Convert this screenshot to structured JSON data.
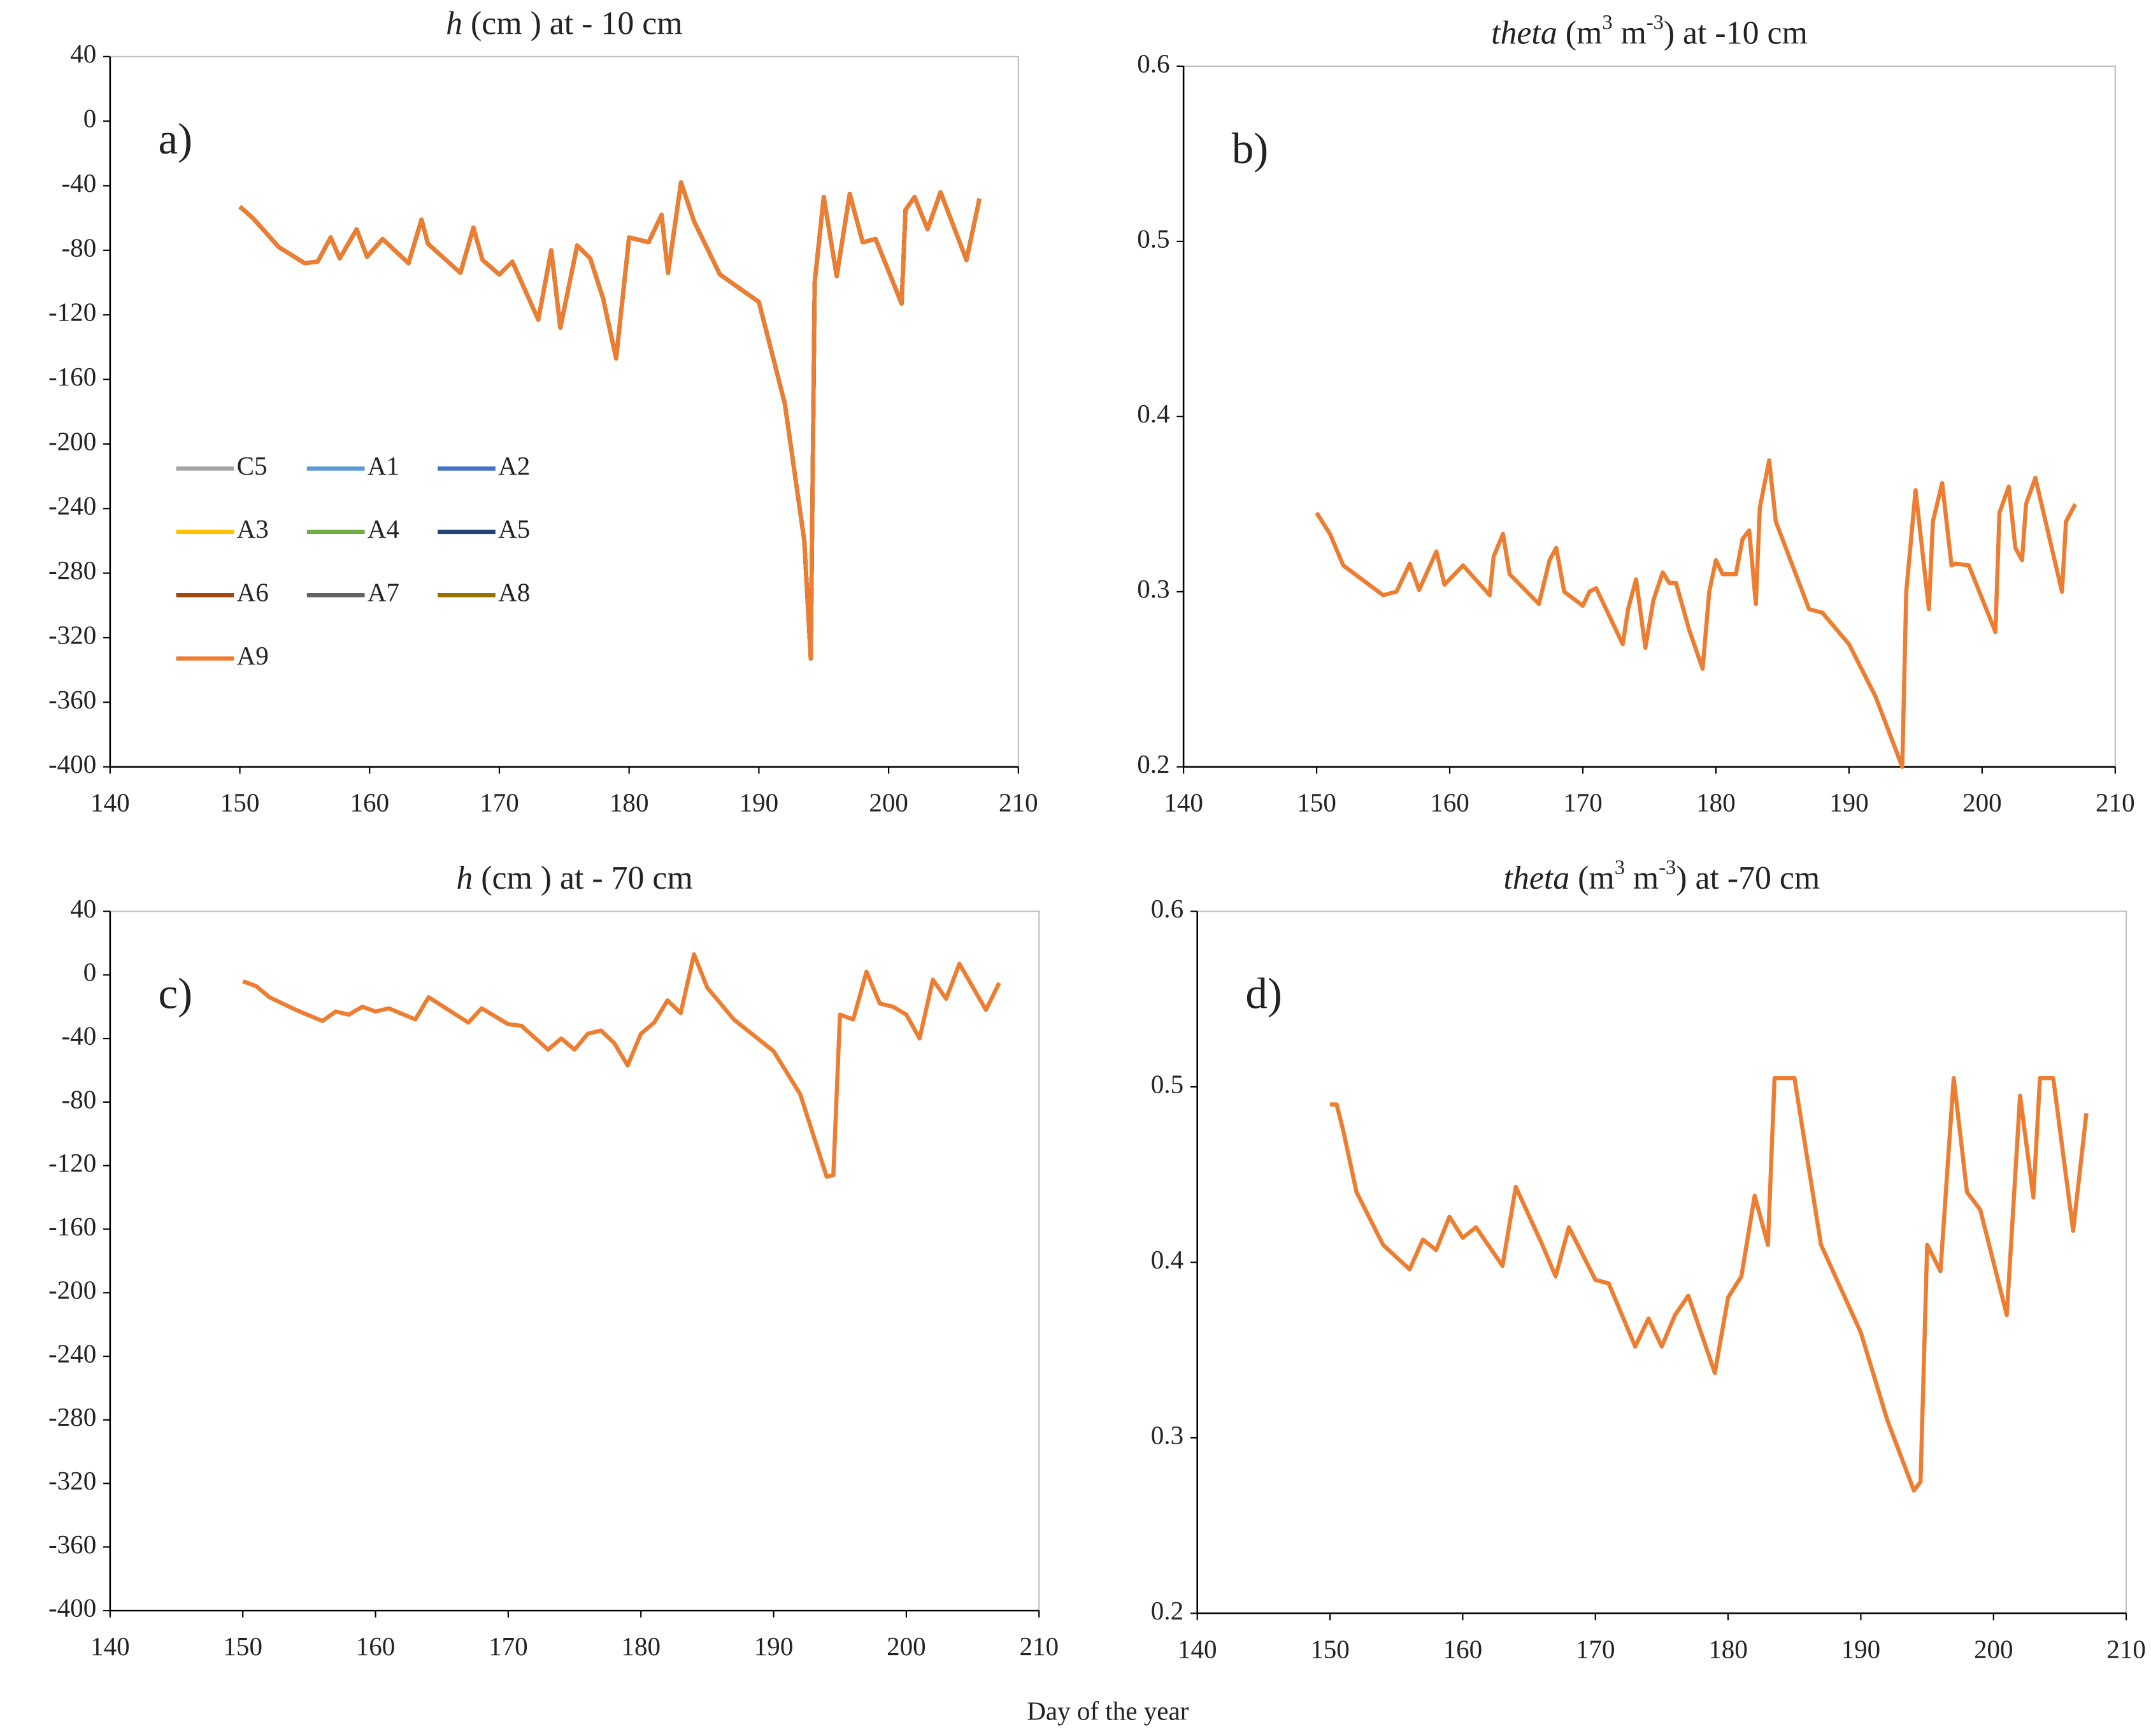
{
  "xlabel": "Day of the year",
  "chart_data": [
    {
      "type": "line",
      "label": "a)",
      "title": [
        {
          "text": "h",
          "italic": true
        },
        {
          "text": " (cm ) at - 10 cm"
        }
      ],
      "xlim": [
        140,
        210
      ],
      "xticks": [
        140,
        150,
        160,
        170,
        180,
        190,
        200,
        210
      ],
      "ylim": [
        -400,
        40
      ],
      "yticks": [
        -400,
        -360,
        -320,
        -280,
        -240,
        -200,
        -160,
        -120,
        -80,
        -40,
        0,
        40
      ],
      "legend": "center-left",
      "x": [
        150,
        151,
        153,
        155,
        156,
        157,
        157.7,
        159,
        159.8,
        161,
        163,
        164,
        164.5,
        167,
        168,
        168.7,
        170,
        171,
        173,
        174,
        174.7,
        176,
        177,
        178,
        179,
        180,
        181.5,
        182.5,
        183,
        184,
        185,
        187,
        190,
        192,
        193.5,
        194,
        194.3,
        195,
        196,
        197,
        198,
        199,
        201,
        201.3,
        202,
        203,
        204,
        206,
        207
      ],
      "series": [
        {
          "name": "C5",
          "color": "#a5a5a5",
          "values": [
            -53,
            -60,
            -78,
            -88,
            -87,
            -72,
            -85,
            -67,
            -84,
            -73,
            -88,
            -61,
            -76,
            -94,
            -66,
            -86,
            -95,
            -87,
            -123,
            -80,
            -128,
            -77,
            -85,
            -110,
            -147,
            -72,
            -75,
            -58,
            -94,
            -38,
            -62,
            -95,
            -112,
            -175,
            -260,
            -333,
            -100,
            -47,
            -96,
            -45,
            -75,
            -73,
            -113,
            -55,
            -47,
            -67,
            -44,
            -86,
            -48
          ]
        },
        {
          "name": "A1",
          "color": "#5b9bd5",
          "values": [
            -53,
            -60,
            -78,
            -88,
            -87,
            -72,
            -85,
            -67,
            -84,
            -73,
            -88,
            -61,
            -76,
            -94,
            -66,
            -86,
            -95,
            -87,
            -123,
            -80,
            -128,
            -77,
            -85,
            -110,
            -147,
            -72,
            -75,
            -58,
            -94,
            -38,
            -62,
            -95,
            -112,
            -175,
            -260,
            -333,
            -100,
            -47,
            -96,
            -45,
            -75,
            -73,
            -113,
            -55,
            -47,
            -67,
            -44,
            -86,
            -48
          ]
        },
        {
          "name": "A2",
          "color": "#4472c4",
          "values": [
            -53,
            -60,
            -78,
            -88,
            -87,
            -72,
            -85,
            -67,
            -84,
            -73,
            -88,
            -61,
            -76,
            -94,
            -66,
            -86,
            -95,
            -87,
            -123,
            -80,
            -128,
            -77,
            -85,
            -110,
            -147,
            -72,
            -75,
            -58,
            -94,
            -38,
            -62,
            -95,
            -112,
            -175,
            -260,
            -333,
            -100,
            -47,
            -96,
            -45,
            -75,
            -73,
            -113,
            -55,
            -47,
            -67,
            -44,
            -86,
            -48
          ]
        },
        {
          "name": "A3",
          "color": "#ffc000",
          "values": [
            -53,
            -60,
            -78,
            -88,
            -87,
            -72,
            -85,
            -67,
            -84,
            -73,
            -88,
            -61,
            -76,
            -94,
            -66,
            -86,
            -95,
            -87,
            -123,
            -80,
            -128,
            -77,
            -85,
            -110,
            -147,
            -72,
            -75,
            -58,
            -94,
            -38,
            -62,
            -95,
            -112,
            -175,
            -260,
            -333,
            -100,
            -47,
            -96,
            -45,
            -75,
            -73,
            -113,
            -55,
            -47,
            -67,
            -44,
            -86,
            -48
          ]
        },
        {
          "name": "A4",
          "color": "#70ad47",
          "values": [
            -53,
            -60,
            -78,
            -88,
            -87,
            -72,
            -85,
            -67,
            -84,
            -73,
            -88,
            -61,
            -76,
            -94,
            -66,
            -86,
            -95,
            -87,
            -123,
            -80,
            -128,
            -77,
            -85,
            -110,
            -147,
            -72,
            -75,
            -58,
            -94,
            -38,
            -62,
            -95,
            -112,
            -175,
            -260,
            -333,
            -100,
            -47,
            -96,
            -45,
            -75,
            -73,
            -113,
            -55,
            -47,
            -67,
            -44,
            -86,
            -48
          ]
        },
        {
          "name": "A5",
          "color": "#264478",
          "values": [
            -53,
            -60,
            -78,
            -88,
            -87,
            -72,
            -85,
            -67,
            -84,
            -73,
            -88,
            -61,
            -76,
            -94,
            -66,
            -86,
            -95,
            -87,
            -123,
            -80,
            -128,
            -77,
            -85,
            -110,
            -147,
            -72,
            -75,
            -58,
            -94,
            -38,
            -62,
            -95,
            -112,
            -175,
            -260,
            -333,
            -100,
            -47,
            -96,
            -45,
            -75,
            -73,
            -113,
            -55,
            -47,
            -67,
            -44,
            -86,
            -48
          ]
        },
        {
          "name": "A6",
          "color": "#9e480e",
          "values": [
            -53,
            -60,
            -78,
            -88,
            -87,
            -72,
            -85,
            -67,
            -84,
            -73,
            -88,
            -61,
            -76,
            -94,
            -66,
            -86,
            -95,
            -87,
            -123,
            -80,
            -128,
            -77,
            -85,
            -110,
            -147,
            -72,
            -75,
            -58,
            -94,
            -38,
            -62,
            -95,
            -112,
            -175,
            -260,
            -333,
            -100,
            -47,
            -96,
            -45,
            -75,
            -73,
            -113,
            -55,
            -47,
            -67,
            -44,
            -86,
            -48
          ]
        },
        {
          "name": "A7",
          "color": "#636363",
          "values": [
            -53,
            -60,
            -78,
            -88,
            -87,
            -72,
            -85,
            -67,
            -84,
            -73,
            -88,
            -61,
            -76,
            -94,
            -66,
            -86,
            -95,
            -87,
            -123,
            -80,
            -128,
            -77,
            -85,
            -110,
            -147,
            -72,
            -75,
            -58,
            -94,
            -38,
            -62,
            -95,
            -112,
            -175,
            -260,
            -333,
            -100,
            -47,
            -96,
            -45,
            -75,
            -73,
            -113,
            -55,
            -47,
            -67,
            -44,
            -86,
            -48
          ]
        },
        {
          "name": "A8",
          "color": "#997300",
          "values": [
            -53,
            -60,
            -78,
            -88,
            -87,
            -72,
            -85,
            -67,
            -84,
            -73,
            -88,
            -61,
            -76,
            -94,
            -66,
            -86,
            -95,
            -87,
            -123,
            -80,
            -128,
            -77,
            -85,
            -110,
            -147,
            -72,
            -75,
            -58,
            -94,
            -38,
            -62,
            -95,
            -112,
            -175,
            -260,
            -333,
            -100,
            -47,
            -96,
            -45,
            -75,
            -73,
            -113,
            -55,
            -47,
            -67,
            -44,
            -86,
            -48
          ]
        },
        {
          "name": "A9",
          "color": "#ed7d31",
          "values": [
            -53,
            -60,
            -78,
            -88,
            -87,
            -72,
            -85,
            -67,
            -84,
            -73,
            -88,
            -61,
            -76,
            -94,
            -66,
            -86,
            -95,
            -87,
            -123,
            -80,
            -128,
            -77,
            -85,
            -110,
            -147,
            -72,
            -75,
            -58,
            -94,
            -38,
            -62,
            -95,
            -112,
            -175,
            -260,
            -333,
            -100,
            -47,
            -96,
            -45,
            -75,
            -73,
            -113,
            -55,
            -47,
            -67,
            -44,
            -86,
            -48
          ]
        }
      ]
    },
    {
      "type": "line",
      "label": "b)",
      "title": [
        {
          "text": "theta",
          "italic": true
        },
        {
          "text": " (m"
        },
        {
          "text": "3",
          "sup": true
        },
        {
          "text": " m"
        },
        {
          "text": "-3",
          "sup": true
        },
        {
          "text": ")  at -10 cm"
        }
      ],
      "xlim": [
        140,
        210
      ],
      "xticks": [
        140,
        150,
        160,
        170,
        180,
        190,
        200,
        210
      ],
      "ylim": [
        0.2,
        0.6
      ],
      "yticks": [
        0.2,
        0.3,
        0.4,
        0.5,
        0.6
      ],
      "x": [
        150,
        151,
        152,
        155,
        156,
        157,
        157.7,
        159,
        159.6,
        161,
        163,
        163.3,
        164,
        164.5,
        166.7,
        167.5,
        168,
        168.6,
        170,
        170.5,
        171,
        173,
        173.4,
        174,
        174.7,
        175.3,
        176,
        176.5,
        177,
        178,
        179,
        179.5,
        180,
        180.5,
        181.5,
        182,
        182.5,
        183,
        183.3,
        184,
        184.5,
        187,
        188,
        190,
        192,
        194,
        194.3,
        195,
        196,
        196.3,
        197,
        197.7,
        198,
        199,
        201,
        201.3,
        202,
        202.5,
        203,
        203.3,
        204,
        206,
        206.3,
        207
      ],
      "series": [
        {
          "color": "#ed7d31",
          "values": [
            0.345,
            0.333,
            0.315,
            0.298,
            0.3,
            0.316,
            0.301,
            0.323,
            0.304,
            0.315,
            0.298,
            0.32,
            0.333,
            0.31,
            0.293,
            0.318,
            0.325,
            0.3,
            0.292,
            0.3,
            0.302,
            0.27,
            0.29,
            0.307,
            0.268,
            0.295,
            0.311,
            0.305,
            0.305,
            0.278,
            0.256,
            0.3,
            0.318,
            0.31,
            0.31,
            0.33,
            0.335,
            0.293,
            0.348,
            0.375,
            0.34,
            0.29,
            0.288,
            0.27,
            0.24,
            0.2,
            0.3,
            0.358,
            0.29,
            0.34,
            0.362,
            0.315,
            0.316,
            0.315,
            0.277,
            0.345,
            0.36,
            0.325,
            0.318,
            0.35,
            0.365,
            0.3,
            0.34,
            0.35
          ]
        }
      ]
    },
    {
      "type": "line",
      "label": "c)",
      "title": [
        {
          "text": "h",
          "italic": true
        },
        {
          "text": " (cm ) at - 70 cm"
        }
      ],
      "xlim": [
        140,
        210
      ],
      "xticks": [
        140,
        150,
        160,
        170,
        180,
        190,
        200,
        210
      ],
      "ylim": [
        -400,
        40
      ],
      "yticks": [
        -400,
        -360,
        -320,
        -280,
        -240,
        -200,
        -160,
        -120,
        -80,
        -40,
        0,
        40
      ],
      "x": [
        150,
        151,
        152,
        154,
        156,
        157,
        158,
        159,
        160,
        161,
        163,
        164,
        167,
        168,
        170,
        171,
        173,
        174,
        175,
        176,
        177,
        178,
        179,
        180,
        181,
        182,
        183,
        184,
        185,
        187,
        190,
        192,
        194,
        194.5,
        195,
        196,
        197,
        198,
        199,
        200,
        201,
        202,
        203,
        204,
        206,
        207
      ],
      "series": [
        {
          "color": "#ed7d31",
          "values": [
            -4,
            -7,
            -14,
            -22,
            -29,
            -23,
            -25,
            -20,
            -23,
            -21,
            -28,
            -14,
            -30,
            -21,
            -31,
            -32,
            -47,
            -40,
            -47,
            -37,
            -35,
            -43,
            -57,
            -37,
            -30,
            -16,
            -24,
            13,
            -8,
            -28,
            -48,
            -75,
            -127,
            -126,
            -25,
            -28,
            2,
            -18,
            -20,
            -25,
            -40,
            -3,
            -15,
            7,
            -22,
            -5
          ]
        }
      ]
    },
    {
      "type": "line",
      "label": "d)",
      "title": [
        {
          "text": "theta",
          "italic": true
        },
        {
          "text": " (m"
        },
        {
          "text": "3",
          "sup": true
        },
        {
          "text": " m"
        },
        {
          "text": "-3",
          "sup": true
        },
        {
          "text": ")  at -70 cm"
        }
      ],
      "xlim": [
        140,
        210
      ],
      "xticks": [
        140,
        150,
        160,
        170,
        180,
        190,
        200,
        210
      ],
      "ylim": [
        0.2,
        0.6
      ],
      "yticks": [
        0.2,
        0.3,
        0.4,
        0.5,
        0.6
      ],
      "x": [
        150,
        150.5,
        151,
        152,
        154,
        156,
        157,
        158,
        159,
        160,
        161,
        163,
        164,
        166,
        167,
        168,
        170,
        171,
        173,
        174,
        175,
        176,
        177,
        179,
        180,
        181,
        182,
        183,
        183.5,
        185,
        187,
        190,
        192,
        194,
        194.5,
        195,
        196,
        197,
        198,
        199,
        200,
        201,
        202,
        203,
        203.5,
        204.5,
        206,
        207
      ],
      "series": [
        {
          "color": "#ed7d31",
          "values": [
            0.49,
            0.49,
            0.475,
            0.44,
            0.41,
            0.396,
            0.413,
            0.407,
            0.426,
            0.414,
            0.42,
            0.398,
            0.443,
            0.41,
            0.392,
            0.42,
            0.39,
            0.388,
            0.352,
            0.368,
            0.352,
            0.37,
            0.381,
            0.337,
            0.38,
            0.392,
            0.438,
            0.41,
            0.505,
            0.505,
            0.41,
            0.36,
            0.31,
            0.27,
            0.275,
            0.41,
            0.395,
            0.505,
            0.44,
            0.43,
            0.4,
            0.37,
            0.495,
            0.437,
            0.505,
            0.505,
            0.418,
            0.485
          ]
        }
      ]
    }
  ]
}
